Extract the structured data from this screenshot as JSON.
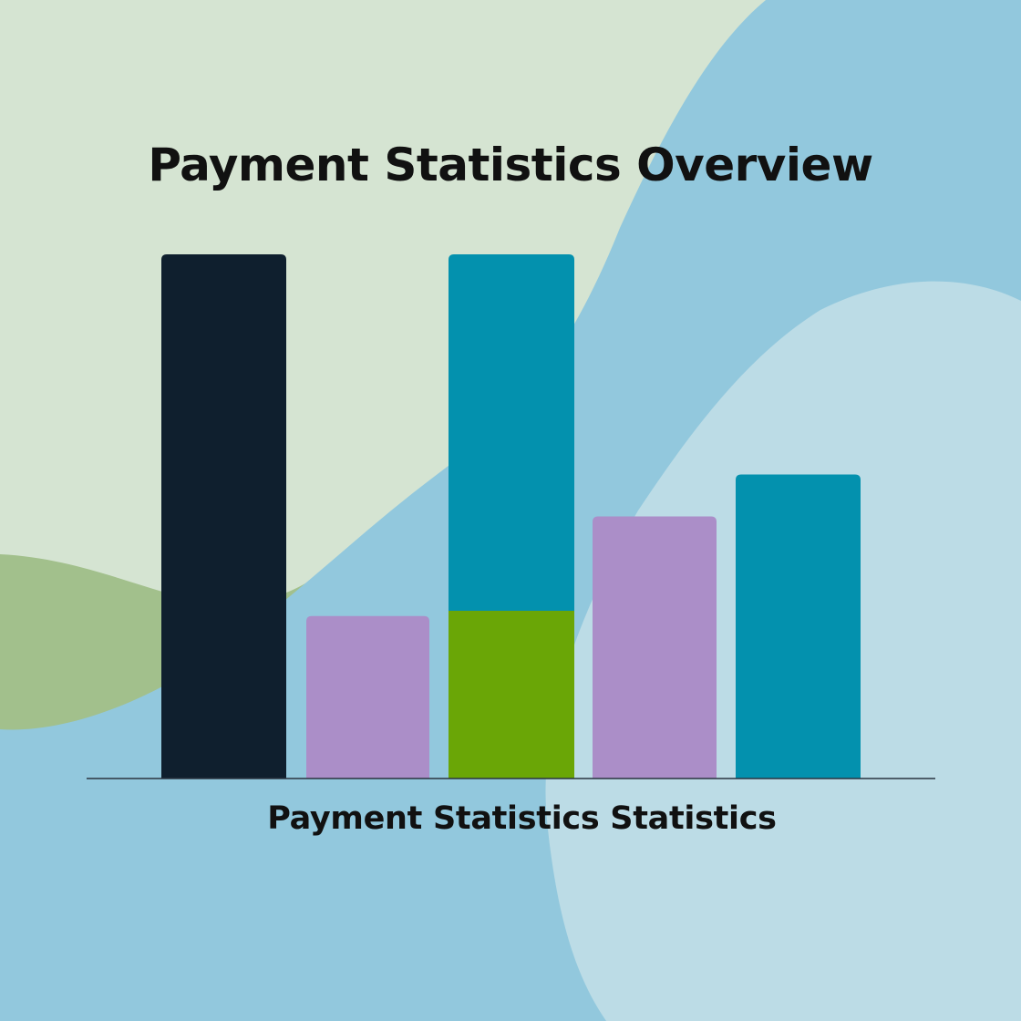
{
  "colors": {
    "navy": "#0f1f2e",
    "lavender": "#ab8ec8",
    "teal": "#0391ae",
    "green": "#6aa606",
    "background_mint": "#d5e4d2",
    "background_sky": "#92c8dd",
    "background_pale_blue": "#bcdce6",
    "background_sage": "#a2c08c"
  },
  "chart_data": {
    "type": "bar",
    "title": "Payment Statistics Overview",
    "xlabel": "Payment Statistics Statistics",
    "ylabel": "",
    "categories": [
      "",
      "",
      "",
      "",
      ""
    ],
    "stacked": true,
    "grid": false,
    "ylim": [
      0,
      100
    ],
    "bars": [
      {
        "segments": [
          {
            "value": 100,
            "color": "#0f1f2e"
          }
        ]
      },
      {
        "segments": [
          {
            "value": 31,
            "color": "#ab8ec8"
          }
        ]
      },
      {
        "segments": [
          {
            "value": 32,
            "color": "#6aa606"
          },
          {
            "value": 68,
            "color": "#0391ae"
          }
        ]
      },
      {
        "segments": [
          {
            "value": 50,
            "color": "#ab8ec8"
          }
        ]
      },
      {
        "segments": [
          {
            "value": 58,
            "color": "#0391ae"
          }
        ]
      }
    ]
  }
}
